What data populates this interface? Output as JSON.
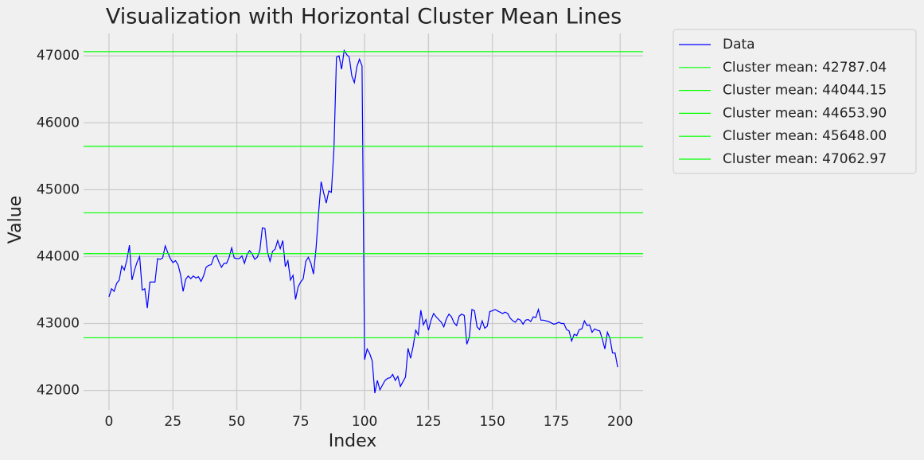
{
  "chart_data": {
    "type": "line",
    "title": "Visualization with Horizontal Cluster Mean Lines",
    "xlabel": "Index",
    "ylabel": "Value",
    "x": [
      0,
      1,
      2,
      3,
      4,
      5,
      6,
      7,
      8,
      9,
      10,
      11,
      12,
      13,
      14,
      15,
      16,
      17,
      18,
      19,
      20,
      21,
      22,
      23,
      24,
      25,
      26,
      27,
      28,
      29,
      30,
      31,
      32,
      33,
      34,
      35,
      36,
      37,
      38,
      39,
      40,
      41,
      42,
      43,
      44,
      45,
      46,
      47,
      48,
      49,
      50,
      51,
      52,
      53,
      54,
      55,
      56,
      57,
      58,
      59,
      60,
      61,
      62,
      63,
      64,
      65,
      66,
      67,
      68,
      69,
      70,
      71,
      72,
      73,
      74,
      75,
      76,
      77,
      78,
      79,
      80,
      81,
      82,
      83,
      84,
      85,
      86,
      87,
      88,
      89,
      90,
      91,
      92,
      93,
      94,
      95,
      96,
      97,
      98,
      99,
      100,
      101,
      102,
      103,
      104,
      105,
      106,
      107,
      108,
      109,
      110,
      111,
      112,
      113,
      114,
      115,
      116,
      117,
      118,
      119,
      120,
      121,
      122,
      123,
      124,
      125,
      126,
      127,
      128,
      129,
      130,
      131,
      132,
      133,
      134,
      135,
      136,
      137,
      138,
      139,
      140,
      141,
      142,
      143,
      144,
      145,
      146,
      147,
      148,
      149,
      150,
      151,
      152,
      153,
      154,
      155,
      156,
      157,
      158,
      159,
      160,
      161,
      162,
      163,
      164,
      165,
      166,
      167,
      168,
      169,
      170,
      171,
      172,
      173,
      174,
      175,
      176,
      177,
      178,
      179,
      180,
      181,
      182,
      183,
      184,
      185,
      186,
      187,
      188,
      189,
      190,
      191,
      192,
      193,
      194,
      195,
      196,
      197,
      198,
      199
    ],
    "series": [
      {
        "name": "Data",
        "color": "#0000ff",
        "values": [
          43400,
          43520,
          43480,
          43600,
          43650,
          43860,
          43800,
          43950,
          44170,
          43650,
          43800,
          43920,
          44000,
          43500,
          43520,
          43230,
          43620,
          43620,
          43620,
          43970,
          43960,
          43980,
          44160,
          44060,
          43970,
          43910,
          43940,
          43880,
          43730,
          43480,
          43660,
          43710,
          43670,
          43710,
          43680,
          43700,
          43630,
          43710,
          43840,
          43870,
          43880,
          43990,
          44020,
          43920,
          43840,
          43900,
          43900,
          43990,
          44130,
          43980,
          43970,
          43970,
          44010,
          43900,
          44030,
          44090,
          44040,
          43960,
          43990,
          44090,
          44430,
          44420,
          44070,
          43930,
          44080,
          44110,
          44240,
          44120,
          44240,
          43850,
          43940,
          43650,
          43720,
          43360,
          43550,
          43620,
          43670,
          43930,
          43990,
          43900,
          43740,
          44120,
          44650,
          45120,
          44950,
          44800,
          44980,
          44960,
          45600,
          46980,
          47000,
          46800,
          47080,
          47020,
          46980,
          46700,
          46600,
          46840,
          46950,
          46850,
          42460,
          42620,
          42550,
          42440,
          41960,
          42150,
          42010,
          42080,
          42150,
          42180,
          42190,
          42240,
          42150,
          42210,
          42060,
          42130,
          42200,
          42630,
          42480,
          42660,
          42900,
          42830,
          43200,
          42980,
          43060,
          42900,
          43050,
          43150,
          43100,
          43060,
          43020,
          42950,
          43070,
          43140,
          43100,
          43010,
          42970,
          43110,
          43140,
          43120,
          42690,
          42800,
          43210,
          43190,
          42950,
          42910,
          43040,
          42930,
          42960,
          43180,
          43190,
          43210,
          43190,
          43170,
          43150,
          43170,
          43150,
          43080,
          43040,
          43020,
          43070,
          43050,
          42990,
          43050,
          43060,
          43030,
          43100,
          43090,
          43210,
          43050,
          43050,
          43040,
          43030,
          43010,
          42990,
          43000,
          43020,
          43000,
          43000,
          42910,
          42890,
          42740,
          42840,
          42820,
          42910,
          42920,
          43040,
          42970,
          42980,
          42870,
          42920,
          42900,
          42890,
          42770,
          42620,
          42870,
          42780,
          42560,
          42560,
          42350
        ]
      }
    ],
    "hlines": [
      {
        "name": "Cluster mean: 42787.04",
        "value": 42787.04,
        "color": "#00ff00"
      },
      {
        "name": "Cluster mean: 44044.15",
        "value": 44044.15,
        "color": "#00ff00"
      },
      {
        "name": "Cluster mean: 44653.90",
        "value": 44653.9,
        "color": "#00ff00"
      },
      {
        "name": "Cluster mean: 45648.00",
        "value": 45648.0,
        "color": "#00ff00"
      },
      {
        "name": "Cluster mean: 47062.97",
        "value": 47062.97,
        "color": "#00ff00"
      }
    ],
    "xlim": [
      -9.95,
      208.95
    ],
    "ylim": [
      41710,
      47335
    ],
    "xticks": [
      0,
      25,
      50,
      75,
      100,
      125,
      150,
      175,
      200
    ],
    "yticks": [
      42000,
      43000,
      44000,
      45000,
      46000,
      47000
    ],
    "grid": true,
    "legend": "outside upper right"
  }
}
